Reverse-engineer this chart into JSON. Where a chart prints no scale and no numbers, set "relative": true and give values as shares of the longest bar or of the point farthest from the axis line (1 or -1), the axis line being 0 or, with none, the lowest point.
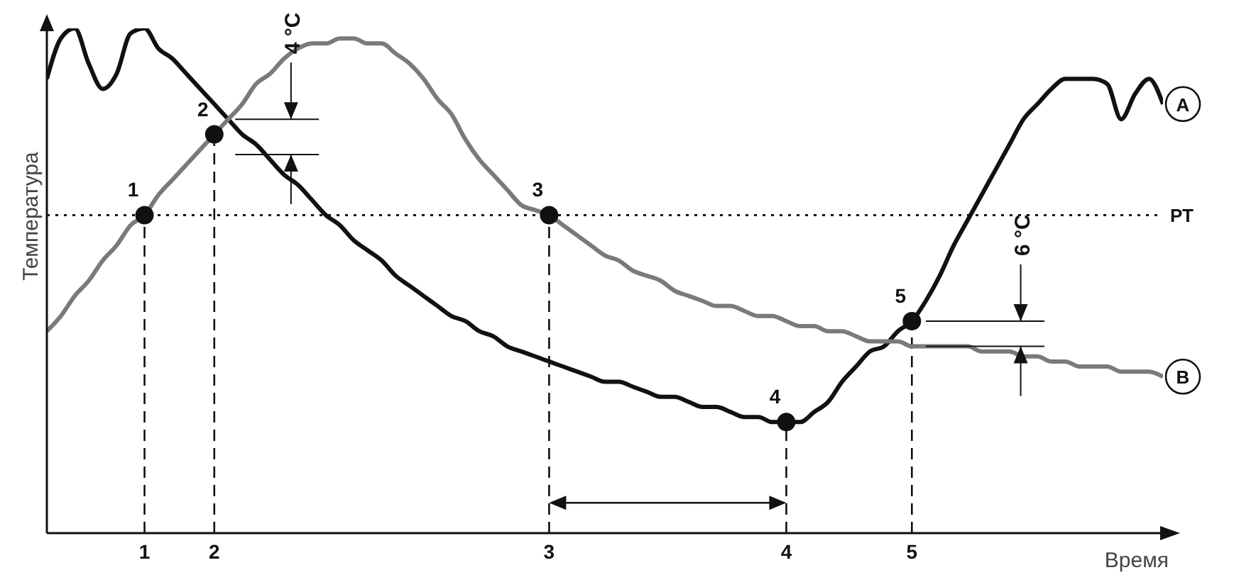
{
  "chart_data": {
    "type": "line",
    "relative": true,
    "xlabel": "Время",
    "ylabel": "Температура",
    "marker": "none",
    "line_style": "solid",
    "categories": [
      null,
      null,
      null,
      null,
      null,
      null,
      null,
      "1",
      null,
      null,
      null,
      null,
      "2",
      null,
      null,
      null,
      null,
      null,
      null,
      null,
      null,
      null,
      null,
      null,
      null,
      null,
      null,
      null,
      null,
      null,
      null,
      null,
      null,
      null,
      null,
      null,
      "3",
      null,
      null,
      null,
      null,
      null,
      null,
      null,
      null,
      null,
      null,
      null,
      null,
      null,
      null,
      null,
      null,
      "4",
      null,
      null,
      null,
      null,
      null,
      null,
      null,
      null,
      "5",
      null,
      null,
      null,
      null,
      null,
      null,
      null,
      null,
      null,
      null,
      null,
      null,
      null,
      null,
      null,
      null,
      null,
      null
    ],
    "series": [
      {
        "name": "A",
        "color": "#111111",
        "values": [
          0.9,
          0.98,
          1.0,
          0.93,
          0.88,
          0.91,
          0.99,
          1.0,
          0.96,
          0.94,
          0.91,
          0.88,
          0.85,
          0.82,
          0.79,
          0.77,
          0.74,
          0.71,
          0.69,
          0.66,
          0.63,
          0.61,
          0.58,
          0.56,
          0.54,
          0.51,
          0.49,
          0.47,
          0.45,
          0.43,
          0.42,
          0.4,
          0.39,
          0.37,
          0.36,
          0.35,
          0.34,
          0.33,
          0.32,
          0.31,
          0.3,
          0.3,
          0.29,
          0.28,
          0.27,
          0.27,
          0.26,
          0.25,
          0.25,
          0.24,
          0.23,
          0.23,
          0.22,
          0.22,
          0.22,
          0.24,
          0.26,
          0.3,
          0.33,
          0.36,
          0.37,
          0.4,
          0.42,
          0.46,
          0.51,
          0.57,
          0.62,
          0.67,
          0.72,
          0.77,
          0.82,
          0.85,
          0.88,
          0.9,
          0.9,
          0.9,
          0.89,
          0.82,
          0.87,
          0.9,
          0.85
        ]
      },
      {
        "name": "B",
        "color": "#7a7a7a",
        "values": [
          0.4,
          0.43,
          0.47,
          0.5,
          0.54,
          0.57,
          0.61,
          0.63,
          0.67,
          0.7,
          0.73,
          0.76,
          0.79,
          0.82,
          0.85,
          0.89,
          0.91,
          0.94,
          0.96,
          0.97,
          0.97,
          0.98,
          0.98,
          0.97,
          0.97,
          0.95,
          0.93,
          0.9,
          0.86,
          0.83,
          0.78,
          0.74,
          0.71,
          0.68,
          0.65,
          0.64,
          0.63,
          0.61,
          0.59,
          0.57,
          0.55,
          0.54,
          0.52,
          0.51,
          0.5,
          0.48,
          0.47,
          0.46,
          0.45,
          0.45,
          0.44,
          0.43,
          0.43,
          0.42,
          0.41,
          0.41,
          0.4,
          0.4,
          0.39,
          0.38,
          0.38,
          0.38,
          0.37,
          0.37,
          0.37,
          0.37,
          0.37,
          0.36,
          0.36,
          0.36,
          0.35,
          0.35,
          0.34,
          0.34,
          0.33,
          0.33,
          0.33,
          0.32,
          0.32,
          0.32,
          0.31
        ]
      }
    ],
    "ref_lines": [
      {
        "axis": "y",
        "value": 0.63,
        "label": "РТ",
        "line_style": "dotted",
        "color": "#111111"
      }
    ],
    "annotations": [
      {
        "text": "1",
        "x": "1",
        "y": 0.63
      },
      {
        "text": "2",
        "x": "2",
        "y": 0.79
      },
      {
        "text": "3",
        "x": "3",
        "y": 0.63
      },
      {
        "text": "4",
        "x": "4",
        "y": 0.22
      },
      {
        "text": "5",
        "x": "5",
        "y": 0.42
      },
      "4 °C",
      "6 °C"
    ]
  }
}
